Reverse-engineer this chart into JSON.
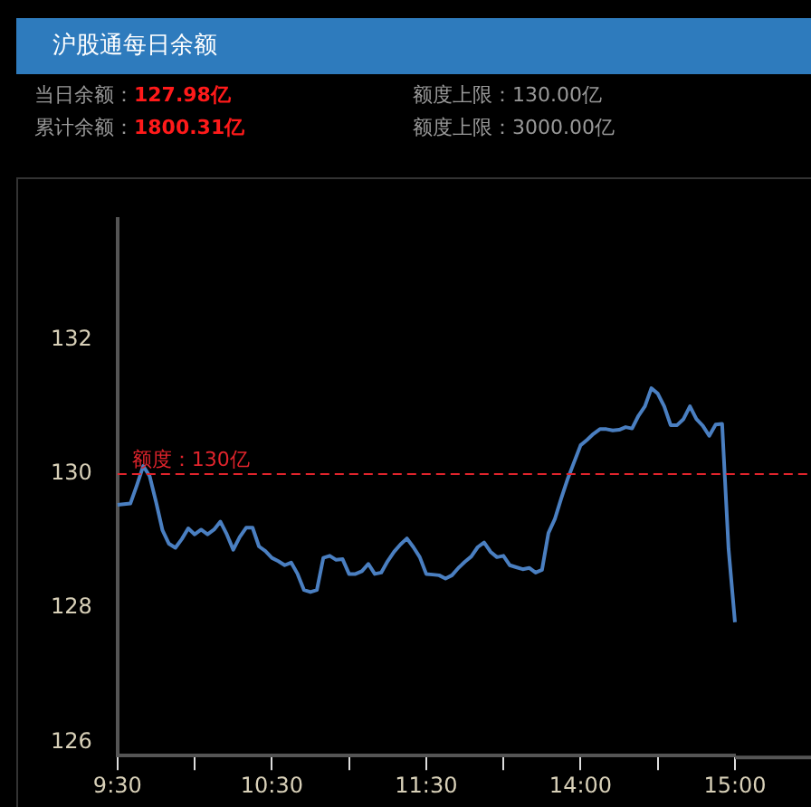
{
  "chart_data": {
    "type": "line",
    "title": "沪股通每日余额",
    "annotations": [
      "当日余额：127.98亿",
      "累计余额：1800.31亿",
      "额度上限：130.00亿",
      "额度上限：3000.00亿"
    ],
    "categories": [
      "9:30",
      null,
      null,
      null,
      null,
      null,
      null,
      null,
      null,
      null,
      null,
      null,
      null,
      null,
      null,
      null,
      null,
      null,
      null,
      null,
      null,
      null,
      null,
      null,
      "10:30",
      null,
      null,
      null,
      null,
      null,
      null,
      null,
      null,
      null,
      null,
      null,
      null,
      null,
      null,
      null,
      null,
      null,
      null,
      null,
      null,
      null,
      null,
      null,
      "11:30",
      null,
      null,
      null,
      null,
      null,
      null,
      null,
      null,
      null,
      null,
      null,
      null,
      null,
      null,
      null,
      null,
      null,
      null,
      null,
      null,
      null,
      null,
      null,
      "14:00",
      null,
      null,
      null,
      null,
      null,
      null,
      null,
      null,
      null,
      null,
      null,
      null,
      null,
      null,
      null,
      null,
      null,
      null,
      null,
      null,
      null,
      null,
      null,
      "15:00"
    ],
    "series": [
      {
        "color": "#4a7fc1",
        "values": [
          129.54,
          129.55,
          129.56,
          129.83,
          130.12,
          129.97,
          129.58,
          129.16,
          128.96,
          128.9,
          129.03,
          129.19,
          129.1,
          129.17,
          129.1,
          129.17,
          129.29,
          129.1,
          128.87,
          129.06,
          129.2,
          129.2,
          128.92,
          128.85,
          128.75,
          128.7,
          128.64,
          128.68,
          128.51,
          128.27,
          128.24,
          128.27,
          128.75,
          128.78,
          128.72,
          128.73,
          128.51,
          128.51,
          128.55,
          128.66,
          128.51,
          128.53,
          128.7,
          128.84,
          128.95,
          129.04,
          128.91,
          128.76,
          128.51,
          128.5,
          128.49,
          128.44,
          128.49,
          128.6,
          128.69,
          128.77,
          128.91,
          128.98,
          128.84,
          128.76,
          128.78,
          128.64,
          128.61,
          128.58,
          128.6,
          128.53,
          128.57,
          129.12,
          129.33,
          129.64,
          129.93,
          130.18,
          130.43,
          130.51,
          130.6,
          130.67,
          130.67,
          130.65,
          130.66,
          130.7,
          130.68,
          130.87,
          131.01,
          131.28,
          131.2,
          131.01,
          130.73,
          130.73,
          130.82,
          131.01,
          130.82,
          130.72,
          130.57,
          130.74,
          130.75,
          128.89,
          127.79
        ]
      }
    ],
    "ylim": [
      125.8,
      133.8
    ],
    "yticks": [
      126,
      128,
      130,
      132
    ],
    "ref_lines": [
      {
        "axis": "y",
        "value": 130,
        "label": "额度：130亿",
        "color": "#e0242c",
        "line_style": "dashed"
      }
    ],
    "grid": false,
    "legend": false,
    "marker": "none",
    "line_style": "solid"
  }
}
